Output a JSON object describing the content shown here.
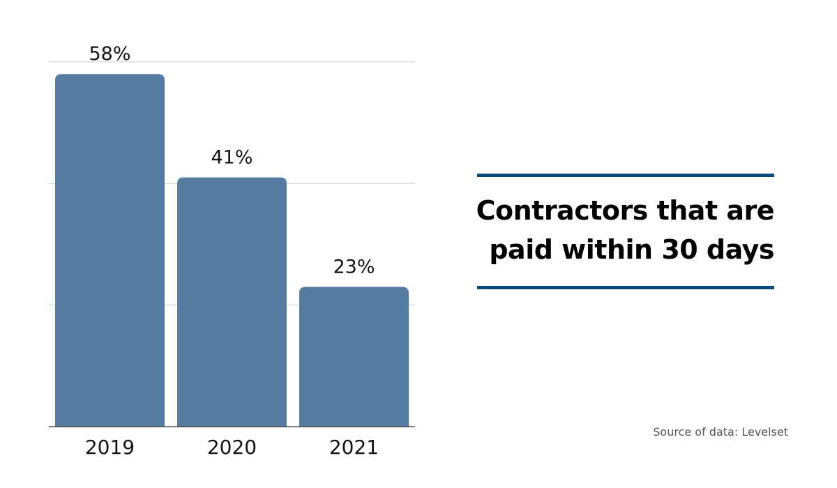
{
  "chart_data": {
    "type": "bar",
    "categories": [
      "2019",
      "2020",
      "2021"
    ],
    "values": [
      58,
      41,
      23
    ],
    "data_labels": [
      "58%",
      "41%",
      "23%"
    ],
    "title_lines": [
      "Contractors that are",
      "paid within 30 days"
    ],
    "source": "Source of data: Levelset",
    "ylim": [
      0,
      60
    ],
    "grid": true,
    "bar_color": "#557ba2",
    "rule_color": "#0b4a7e"
  }
}
